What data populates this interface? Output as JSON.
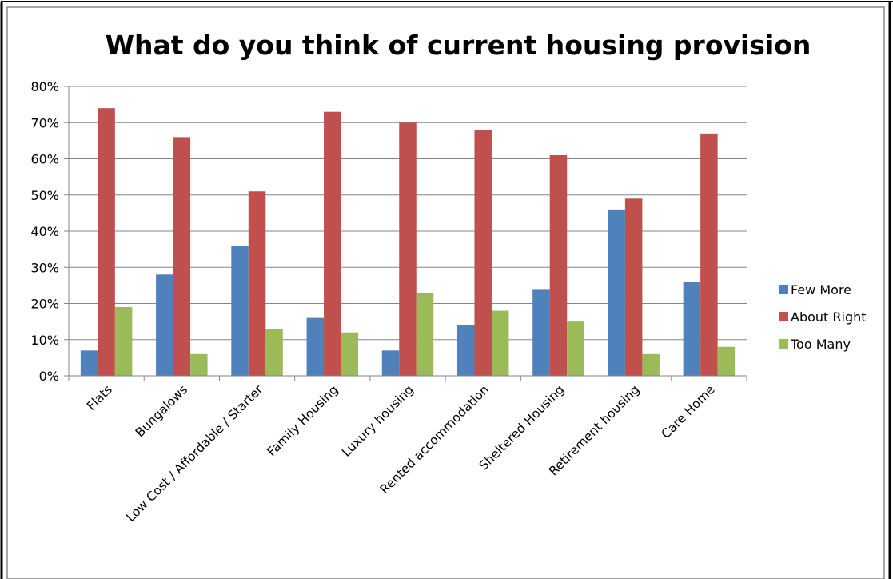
{
  "chart_data": {
    "type": "bar",
    "title": "What do you think of current housing provision",
    "categories": [
      "Flats",
      "Bungalows",
      "Low Cost / Affordable / Starter",
      "Family Housing",
      "Luxury housing",
      "Rented accommodation",
      "Sheltered Housing",
      "Retirement housing",
      "Care Home"
    ],
    "series": [
      {
        "name": "Few More",
        "color": "#4F81BD",
        "values": [
          7,
          28,
          36,
          16,
          7,
          14,
          24,
          46,
          26
        ]
      },
      {
        "name": "About Right",
        "color": "#C0504D",
        "values": [
          74,
          66,
          51,
          73,
          70,
          68,
          61,
          49,
          67
        ]
      },
      {
        "name": "Too Many",
        "color": "#9BBB59",
        "values": [
          19,
          6,
          13,
          12,
          23,
          18,
          15,
          6,
          8
        ]
      }
    ],
    "ylim": [
      0,
      80
    ],
    "yticks": [
      "0%",
      "10%",
      "20%",
      "30%",
      "40%",
      "50%",
      "60%",
      "70%",
      "80%"
    ],
    "grid": true,
    "legend_position": "right"
  }
}
